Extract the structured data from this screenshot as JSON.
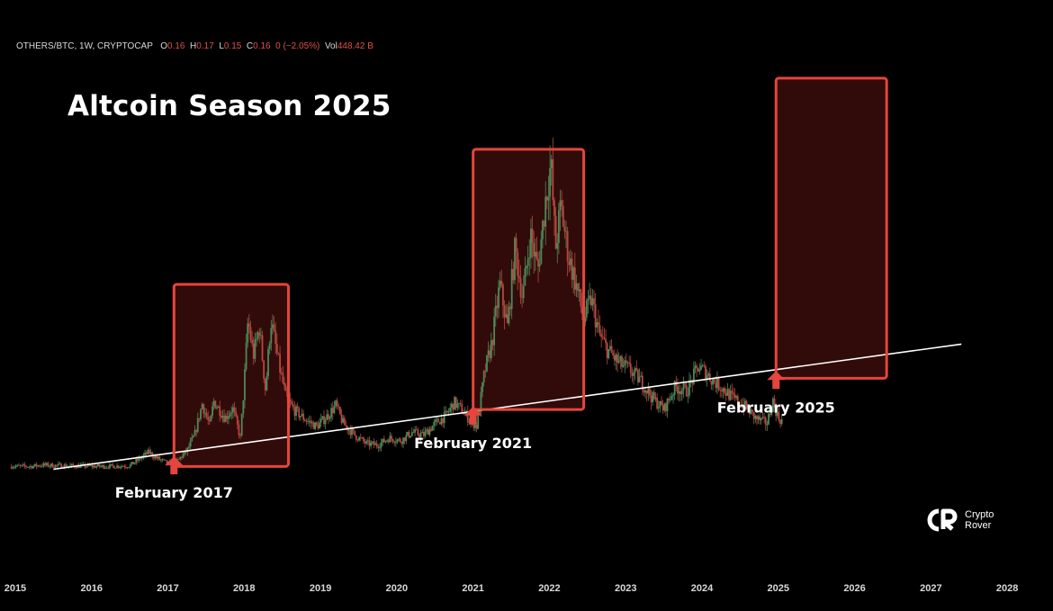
{
  "header": {
    "symbol": "OTHERS/BTC, 1W, CRYPTOCAP",
    "o_label": "O",
    "o_value": "0.16",
    "h_label": "H",
    "h_value": "0.17",
    "l_label": "L",
    "l_value": "0.15",
    "c_label": "C",
    "c_value": "0.16",
    "change": "0 (−2.05%)",
    "vol_label": "Vol",
    "vol_value": "448.42 B"
  },
  "title": "Altcoin Season 2025",
  "logo": {
    "line1": "Crypto",
    "line2": "Rover"
  },
  "chart_data": {
    "type": "line",
    "series": [
      {
        "values": [
          [
            2014.95,
            0.02
          ],
          [
            2015.2,
            0.02
          ],
          [
            2015.35,
            0.03
          ],
          [
            2015.6,
            0.025
          ],
          [
            2015.9,
            0.022
          ],
          [
            2016.2,
            0.02
          ],
          [
            2016.5,
            0.025
          ],
          [
            2016.75,
            0.12
          ],
          [
            2016.85,
            0.08
          ],
          [
            2017.0,
            0.04
          ],
          [
            2017.1,
            0.045
          ],
          [
            2017.25,
            0.13
          ],
          [
            2017.35,
            0.24
          ],
          [
            2017.45,
            0.46
          ],
          [
            2017.55,
            0.3
          ],
          [
            2017.6,
            0.48
          ],
          [
            2017.75,
            0.36
          ],
          [
            2017.85,
            0.43
          ],
          [
            2017.95,
            0.22
          ],
          [
            2018.0,
            0.6
          ],
          [
            2018.05,
            1.05
          ],
          [
            2018.12,
            0.8
          ],
          [
            2018.2,
            1.0
          ],
          [
            2018.28,
            0.55
          ],
          [
            2018.35,
            1.05
          ],
          [
            2018.45,
            0.75
          ],
          [
            2018.55,
            0.5
          ],
          [
            2018.65,
            0.42
          ],
          [
            2018.8,
            0.35
          ],
          [
            2018.95,
            0.3
          ],
          [
            2019.1,
            0.38
          ],
          [
            2019.2,
            0.45
          ],
          [
            2019.3,
            0.32
          ],
          [
            2019.45,
            0.24
          ],
          [
            2019.6,
            0.18
          ],
          [
            2019.75,
            0.17
          ],
          [
            2019.9,
            0.22
          ],
          [
            2020.05,
            0.2
          ],
          [
            2020.2,
            0.26
          ],
          [
            2020.35,
            0.24
          ],
          [
            2020.5,
            0.32
          ],
          [
            2020.65,
            0.38
          ],
          [
            2020.75,
            0.47
          ],
          [
            2020.85,
            0.42
          ],
          [
            2020.95,
            0.35
          ],
          [
            2021.05,
            0.3
          ],
          [
            2021.15,
            0.68
          ],
          [
            2021.25,
            0.9
          ],
          [
            2021.35,
            1.3
          ],
          [
            2021.45,
            1.0
          ],
          [
            2021.55,
            1.55
          ],
          [
            2021.65,
            1.2
          ],
          [
            2021.75,
            1.65
          ],
          [
            2021.85,
            1.4
          ],
          [
            2021.95,
            1.9
          ],
          [
            2022.02,
            2.15
          ],
          [
            2022.08,
            1.55
          ],
          [
            2022.15,
            1.85
          ],
          [
            2022.25,
            1.5
          ],
          [
            2022.35,
            1.3
          ],
          [
            2022.45,
            1.05
          ],
          [
            2022.55,
            1.2
          ],
          [
            2022.65,
            0.95
          ],
          [
            2022.75,
            0.85
          ],
          [
            2022.9,
            0.75
          ],
          [
            2023.05,
            0.7
          ],
          [
            2023.2,
            0.62
          ],
          [
            2023.35,
            0.5
          ],
          [
            2023.5,
            0.42
          ],
          [
            2023.65,
            0.58
          ],
          [
            2023.8,
            0.55
          ],
          [
            2023.95,
            0.72
          ],
          [
            2024.05,
            0.68
          ],
          [
            2024.15,
            0.62
          ],
          [
            2024.25,
            0.58
          ],
          [
            2024.4,
            0.5
          ],
          [
            2024.55,
            0.45
          ],
          [
            2024.7,
            0.36
          ],
          [
            2024.85,
            0.32
          ],
          [
            2024.93,
            0.48
          ],
          [
            2025.0,
            0.36
          ],
          [
            2025.05,
            0.34
          ]
        ]
      }
    ],
    "trendline": [
      [
        2015.5,
        0.0
      ],
      [
        2027.4,
        0.88
      ]
    ],
    "highlights": [
      {
        "x0": 2017.08,
        "x1": 2018.58,
        "y0": 0.02,
        "y1": 1.3
      },
      {
        "x0": 2021.0,
        "x1": 2022.45,
        "y0": 0.42,
        "y1": 2.25
      },
      {
        "x0": 2024.97,
        "x1": 2026.42,
        "y0": 0.64,
        "y1": 2.75
      }
    ],
    "annotations": [
      {
        "text": "February 2017",
        "x": 2017.08,
        "y": -0.2
      },
      {
        "text": "February 2021",
        "x": 2021.0,
        "y": 0.15
      },
      {
        "text": "February 2025",
        "x": 2024.97,
        "y": 0.4
      }
    ],
    "x_ticks": [
      "2015",
      "2016",
      "2017",
      "2018",
      "2019",
      "2020",
      "2021",
      "2022",
      "2023",
      "2024",
      "2025",
      "2026",
      "2027",
      "2028"
    ],
    "xlim": [
      2014.8,
      2028.6
    ],
    "ylim": [
      -0.75,
      3.3
    ],
    "grid": false
  }
}
